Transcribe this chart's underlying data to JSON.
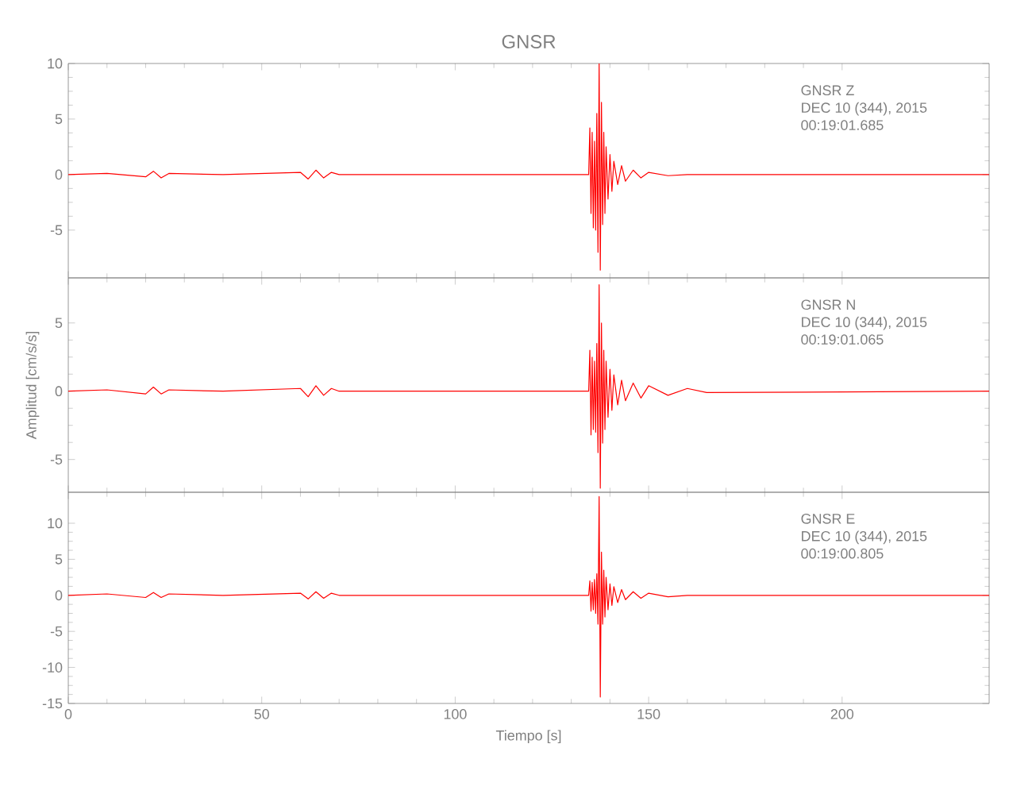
{
  "chart_data": [
    {
      "type": "line",
      "title": "GNSR",
      "annotations": [
        "GNSR Z",
        "DEC 10 (344), 2015",
        "00:19:01.685"
      ],
      "x": [
        0,
        10,
        20,
        22,
        24,
        26,
        40,
        60,
        62,
        64,
        66,
        68,
        70,
        134.5,
        134.8,
        135.1,
        135.4,
        135.7,
        136.0,
        136.3,
        136.6,
        136.9,
        137.2,
        137.5,
        137.8,
        138.1,
        138.4,
        138.7,
        139.0,
        139.5,
        140,
        140.5,
        141,
        142,
        143,
        144,
        146,
        148,
        150,
        155,
        160,
        238
      ],
      "series": [
        {
          "color": "#ff0000",
          "values": [
            0,
            0.1,
            -0.2,
            0.3,
            -0.3,
            0.1,
            0,
            0.2,
            -0.4,
            0.4,
            -0.3,
            0.2,
            0,
            0,
            4.2,
            -3.5,
            3.8,
            -4.8,
            3.0,
            -5.0,
            5.5,
            -7.0,
            10.0,
            -8.6,
            6.5,
            -4.5,
            3.8,
            -3.5,
            2.5,
            -2.2,
            1.8,
            -1.5,
            1.2,
            -0.9,
            0.8,
            -0.6,
            0.4,
            -0.3,
            0.2,
            -0.1,
            0,
            0
          ]
        }
      ],
      "xlim": [
        0,
        238
      ],
      "xticks": [
        0,
        50,
        100,
        150,
        200
      ],
      "ylim": [
        -9.3,
        10
      ],
      "yticks": [
        -5,
        0,
        5,
        10
      ],
      "tick_labels": "y"
    },
    {
      "type": "line",
      "ylabel": "Amplitud [cm/s/s]",
      "annotations": [
        "GNSR N",
        "DEC 10 (344), 2015",
        "00:19:01.065"
      ],
      "x": [
        0,
        10,
        20,
        22,
        24,
        26,
        40,
        60,
        62,
        64,
        66,
        68,
        70,
        134.5,
        134.8,
        135.1,
        135.4,
        135.7,
        136.0,
        136.3,
        136.6,
        136.9,
        137.2,
        137.5,
        137.8,
        138.1,
        138.4,
        138.7,
        139.0,
        139.5,
        140,
        140.5,
        141,
        142,
        143,
        144,
        146,
        148,
        150,
        155,
        160,
        165,
        238
      ],
      "series": [
        {
          "color": "#ff0000",
          "values": [
            0,
            0.1,
            -0.2,
            0.3,
            -0.2,
            0.1,
            0,
            0.2,
            -0.4,
            0.4,
            -0.3,
            0.2,
            0,
            0,
            3.0,
            -3.2,
            2.5,
            -2.8,
            2.2,
            -3.0,
            3.5,
            -4.5,
            7.8,
            -7.1,
            5.0,
            -3.8,
            3.0,
            -2.8,
            2.2,
            -1.9,
            1.6,
            -1.4,
            1.2,
            -1.0,
            0.8,
            -0.7,
            0.6,
            -0.5,
            0.4,
            -0.3,
            0.2,
            -0.1,
            0
          ]
        }
      ],
      "xlim": [
        0,
        238
      ],
      "xticks": [
        0,
        50,
        100,
        150,
        200
      ],
      "ylim": [
        -7.4,
        8.3
      ],
      "yticks": [
        -5,
        0,
        5
      ],
      "tick_labels": "y"
    },
    {
      "type": "line",
      "xlabel": "Tiempo [s]",
      "annotations": [
        "GNSR E",
        "DEC 10 (344), 2015",
        "00:19:00.805"
      ],
      "x": [
        0,
        10,
        20,
        22,
        24,
        26,
        40,
        60,
        62,
        64,
        66,
        68,
        70,
        134.5,
        134.8,
        135.1,
        135.4,
        135.7,
        136.0,
        136.3,
        136.6,
        136.9,
        137.2,
        137.5,
        137.8,
        138.1,
        138.4,
        138.7,
        139.0,
        139.5,
        140,
        140.5,
        141,
        142,
        143,
        144,
        146,
        148,
        150,
        155,
        160,
        238
      ],
      "series": [
        {
          "color": "#ff0000",
          "values": [
            0,
            0.2,
            -0.3,
            0.4,
            -0.3,
            0.2,
            0,
            0.3,
            -0.5,
            0.5,
            -0.4,
            0.3,
            0,
            0,
            2.0,
            -2.2,
            1.8,
            -2.0,
            2.2,
            -2.5,
            3.0,
            -4.0,
            13.7,
            -14.1,
            6.0,
            -4.0,
            3.5,
            -3.0,
            2.5,
            -2.0,
            1.6,
            -1.4,
            1.2,
            -1.0,
            0.8,
            -0.6,
            0.5,
            -0.4,
            0.3,
            -0.2,
            0,
            0
          ]
        }
      ],
      "xlim": [
        0,
        238
      ],
      "xticks": [
        0,
        50,
        100,
        150,
        200
      ],
      "ylim": [
        -15,
        14.3
      ],
      "yticks": [
        -15,
        -10,
        -5,
        0,
        5,
        10
      ]
    }
  ]
}
